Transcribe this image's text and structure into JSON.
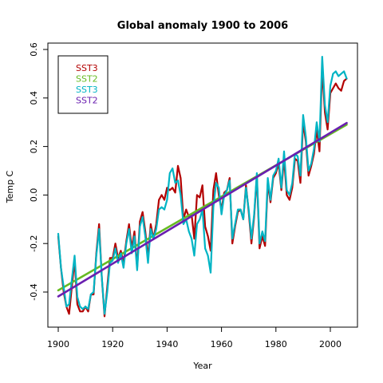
{
  "chart_data": {
    "type": "line",
    "title": "Global anomaly  1900  to  2006",
    "xlabel": "Year",
    "ylabel": "Temp C",
    "xlim": [
      1900,
      2006
    ],
    "ylim": [
      -0.5,
      0.6
    ],
    "x_ticks": [
      1900,
      1920,
      1940,
      1960,
      1980,
      2000
    ],
    "y_ticks": [
      -0.4,
      -0.2,
      0.0,
      0.2,
      0.4,
      0.6
    ],
    "y_tick_labels": [
      "-0.4",
      "-0.2",
      "0.0",
      "0.2",
      "0.4",
      "0.6"
    ],
    "legend": {
      "position": "top-left",
      "entries": [
        {
          "label": "SST3",
          "color": "#b30000"
        },
        {
          "label": "SST2",
          "color": "#66bb22"
        },
        {
          "label": "SST3",
          "color": "#00b4c4"
        },
        {
          "label": "SST2",
          "color": "#6a1fb0"
        }
      ]
    },
    "series": [
      {
        "name": "SST3",
        "color": "#b30000",
        "kind": "data",
        "x_start": 1900,
        "values": [
          -0.17,
          -0.3,
          -0.4,
          -0.46,
          -0.49,
          -0.38,
          -0.27,
          -0.45,
          -0.48,
          -0.48,
          -0.46,
          -0.48,
          -0.41,
          -0.41,
          -0.24,
          -0.12,
          -0.34,
          -0.5,
          -0.38,
          -0.26,
          -0.26,
          -0.2,
          -0.26,
          -0.23,
          -0.28,
          -0.19,
          -0.12,
          -0.22,
          -0.15,
          -0.3,
          -0.11,
          -0.07,
          -0.15,
          -0.26,
          -0.12,
          -0.18,
          -0.12,
          -0.02,
          0.0,
          -0.02,
          0.03,
          0.02,
          0.03,
          0.01,
          0.12,
          0.07,
          -0.1,
          -0.06,
          -0.09,
          -0.08,
          -0.18,
          0.0,
          -0.01,
          0.04,
          -0.13,
          -0.17,
          -0.23,
          0.02,
          0.09,
          0.0,
          -0.06,
          0.01,
          0.02,
          0.07,
          -0.2,
          -0.13,
          -0.07,
          -0.06,
          -0.1,
          0.04,
          -0.07,
          -0.2,
          -0.09,
          0.08,
          -0.22,
          -0.17,
          -0.21,
          0.05,
          -0.03,
          0.07,
          0.09,
          0.13,
          0.02,
          0.15,
          0.0,
          -0.02,
          0.03,
          0.15,
          0.14,
          0.05,
          0.3,
          0.22,
          0.08,
          0.12,
          0.17,
          0.27,
          0.18,
          0.52,
          0.34,
          0.27,
          0.42,
          0.44,
          0.46,
          0.44,
          0.43,
          0.47,
          0.48
        ],
        "line_width": 2.2
      },
      {
        "name": "SST2",
        "color": "#66bb22",
        "kind": "trend",
        "x": [
          1900,
          2006
        ],
        "y": [
          -0.393,
          0.29
        ],
        "line_width": 2.6
      },
      {
        "name": "SST3",
        "color": "#00b4c4",
        "kind": "data",
        "x_start": 1900,
        "values": [
          -0.16,
          -0.3,
          -0.38,
          -0.46,
          -0.45,
          -0.35,
          -0.25,
          -0.42,
          -0.46,
          -0.47,
          -0.46,
          -0.47,
          -0.41,
          -0.4,
          -0.25,
          -0.14,
          -0.34,
          -0.49,
          -0.4,
          -0.28,
          -0.27,
          -0.22,
          -0.28,
          -0.24,
          -0.3,
          -0.2,
          -0.14,
          -0.24,
          -0.17,
          -0.31,
          -0.13,
          -0.09,
          -0.17,
          -0.28,
          -0.14,
          -0.18,
          -0.14,
          -0.06,
          -0.05,
          -0.06,
          -0.02,
          0.09,
          0.11,
          0.05,
          0.06,
          0.0,
          -0.12,
          -0.1,
          -0.15,
          -0.18,
          -0.25,
          -0.12,
          -0.1,
          -0.06,
          -0.22,
          -0.25,
          -0.32,
          -0.05,
          0.05,
          0.03,
          -0.08,
          0.0,
          0.02,
          0.06,
          -0.18,
          -0.12,
          -0.06,
          -0.06,
          -0.1,
          0.03,
          -0.06,
          -0.18,
          -0.08,
          0.09,
          -0.2,
          -0.15,
          -0.19,
          0.07,
          -0.02,
          0.08,
          0.1,
          0.15,
          0.03,
          0.18,
          0.02,
          0.0,
          0.05,
          0.17,
          0.16,
          0.08,
          0.33,
          0.24,
          0.1,
          0.13,
          0.19,
          0.3,
          0.22,
          0.57,
          0.37,
          0.3,
          0.45,
          0.5,
          0.51,
          0.49,
          0.5,
          0.51,
          0.48
        ],
        "line_width": 2.2
      },
      {
        "name": "SST2",
        "color": "#6a1fb0",
        "kind": "trend",
        "x": [
          1900,
          2006
        ],
        "y": [
          -0.418,
          0.297
        ],
        "line_width": 2.6
      }
    ],
    "grid": false
  }
}
